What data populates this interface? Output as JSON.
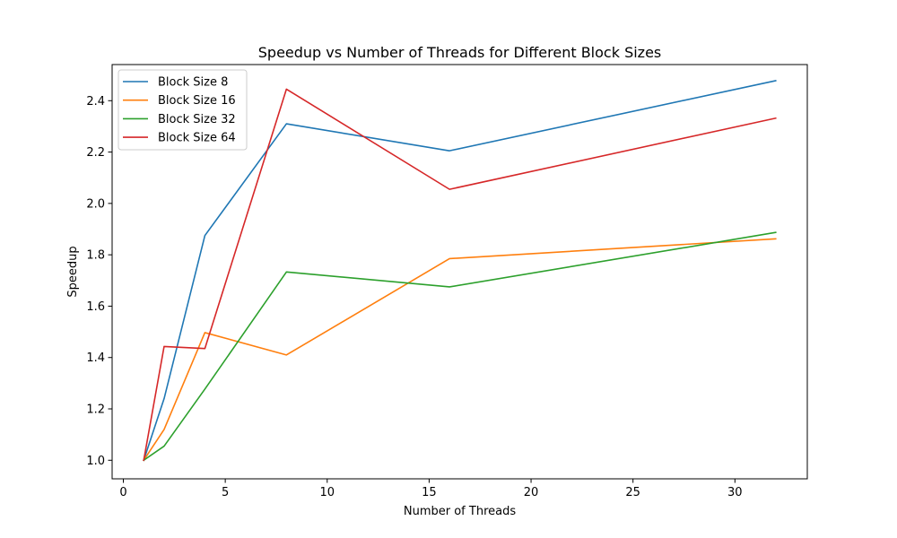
{
  "chart_data": {
    "type": "line",
    "title": "Speedup vs Number of Threads for Different Block Sizes",
    "xlabel": "Number of Threads",
    "ylabel": "Speedup",
    "xlim": [
      -0.55,
      33.55
    ],
    "ylim": [
      0.9277,
      2.5407
    ],
    "xticks": [
      0,
      5,
      10,
      15,
      20,
      25,
      30
    ],
    "yticks": [
      1.0,
      1.2,
      1.4,
      1.6,
      1.8,
      2.0,
      2.2,
      2.4
    ],
    "ytick_labels": [
      "1.0",
      "1.2",
      "1.4",
      "1.6",
      "1.8",
      "2.0",
      "2.2",
      "2.4"
    ],
    "grid": false,
    "legend_position": "upper-left",
    "x": [
      1,
      2,
      4,
      8,
      16,
      32
    ],
    "series": [
      {
        "name": "Block Size 8",
        "color": "#1f77b4",
        "values": [
          1.0,
          1.24,
          1.875,
          2.31,
          2.205,
          2.478
        ]
      },
      {
        "name": "Block Size 16",
        "color": "#ff7f0e",
        "values": [
          1.0,
          1.12,
          1.497,
          1.41,
          1.785,
          1.862
        ]
      },
      {
        "name": "Block Size 32",
        "color": "#2ca02c",
        "values": [
          1.0,
          1.055,
          1.277,
          1.733,
          1.675,
          1.887
        ]
      },
      {
        "name": "Block Size 64",
        "color": "#d62728",
        "values": [
          1.0,
          1.443,
          1.435,
          2.445,
          2.055,
          2.332
        ]
      }
    ]
  }
}
